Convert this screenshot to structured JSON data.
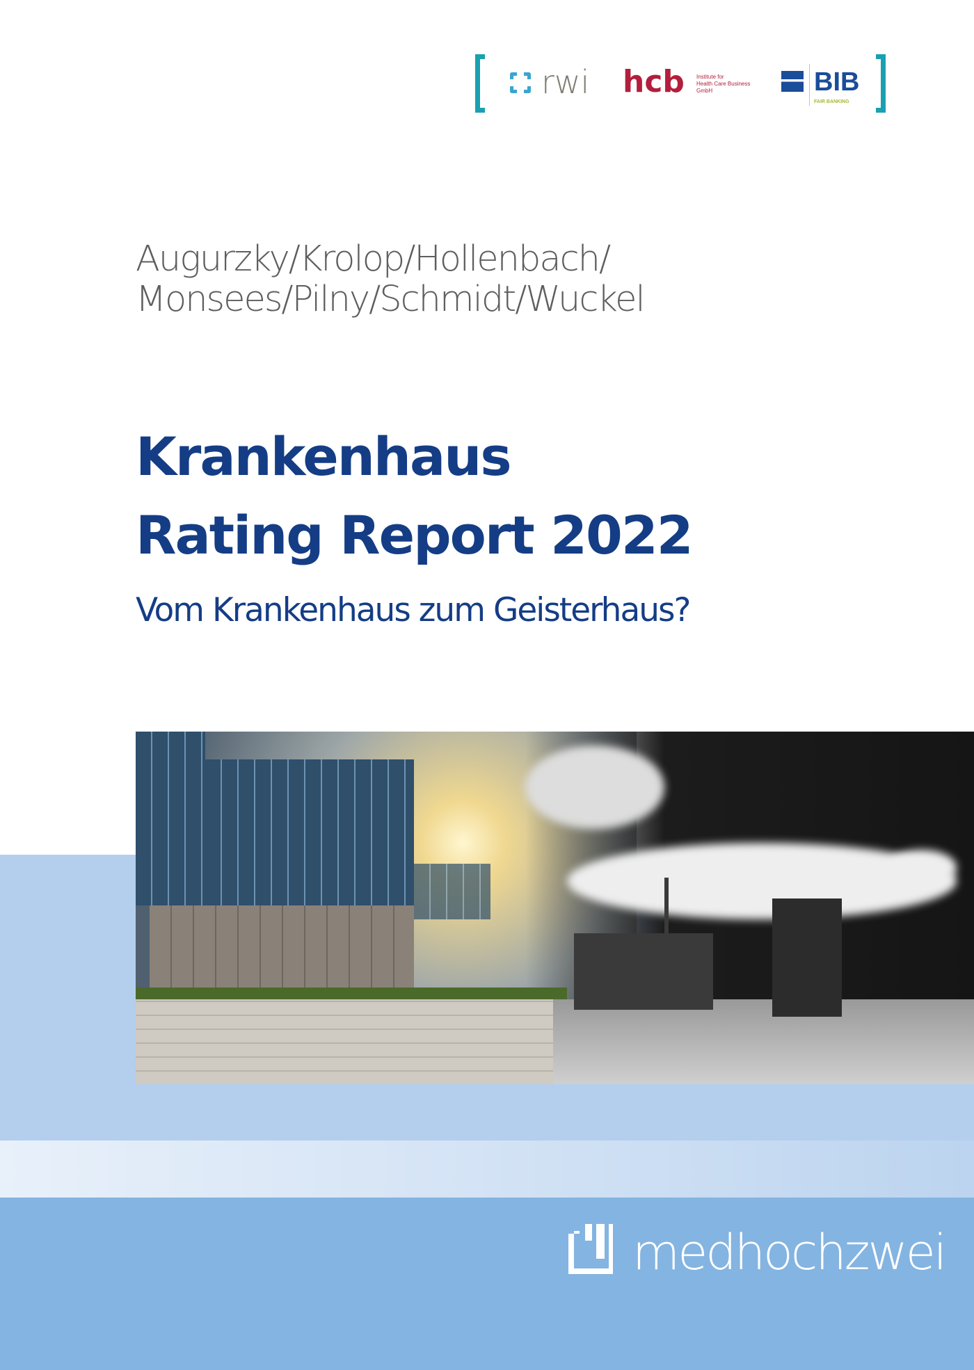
{
  "logos": {
    "rwi": "rwi",
    "hcb": "hcb",
    "hcb_subtitle": [
      "Institute for",
      "Health Care Business",
      "GmbH"
    ],
    "bib": "BIB",
    "bib_subtitle": "FAIR BANKING",
    "bracket_color": "#1aa0b0"
  },
  "authors": [
    "Augurzky/Krolop/Hollenbach/",
    "Monsees/Pilny/Schmidt/Wuckel"
  ],
  "title": [
    "Krankenhaus",
    "Rating Report 2022"
  ],
  "subtitle": "Vom Krankenhaus zum Geisterhaus?",
  "colors": {
    "title": "#143d85",
    "band_light": "#b4cfed",
    "band_dark": "#84b4e1"
  },
  "cover_image": "modern hospital building blending into black-and-white ghost town",
  "publisher": "medhochzwei"
}
